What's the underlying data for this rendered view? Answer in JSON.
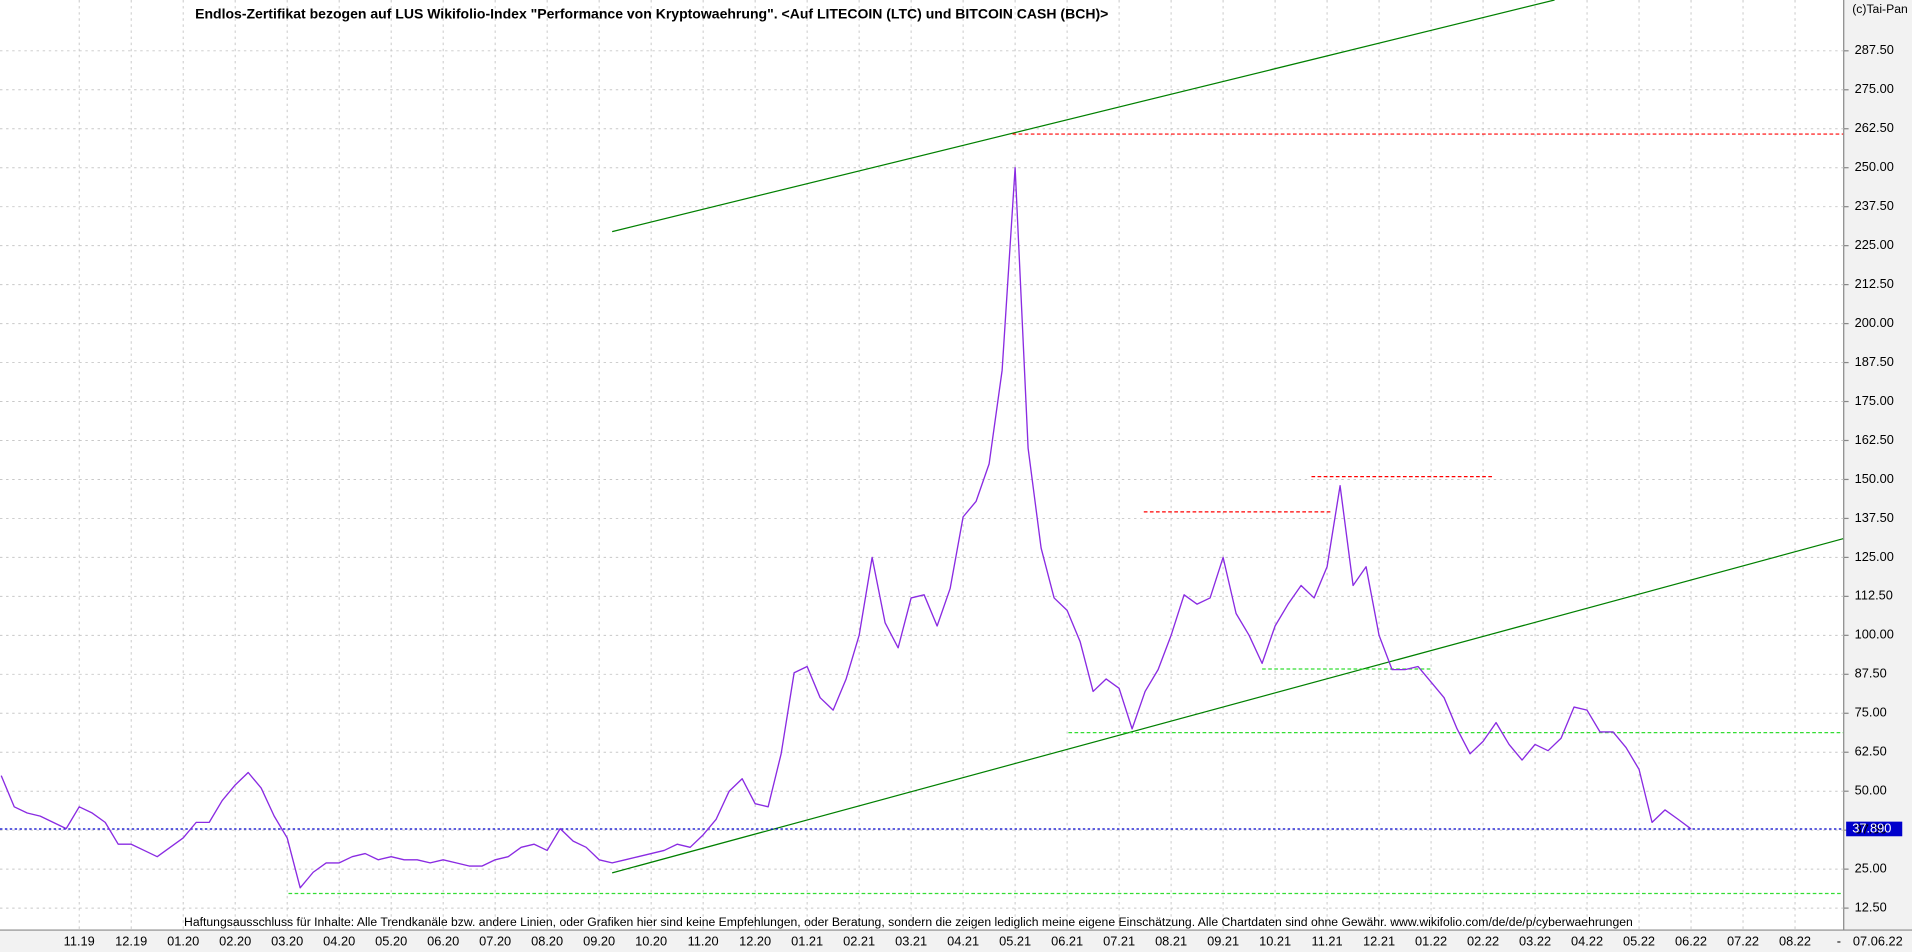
{
  "chart_data": {
    "type": "line",
    "title": "Endlos-Zertifikat bezogen auf LUS Wikifolio-Index \"Performance von Kryptowaehrung\". <Auf LITECOIN (LTC) und BITCOIN CASH (BCH)>",
    "copyright": "(c)Tai-Pan",
    "disclaimer": "Haftungsausschluss für Inhalte: Alle Trendkanäle bzw. andere Linien, oder Grafiken hier sind keine Empfehlungen, oder Beratung, sondern die zeigen lediglich meine eigene Einschätzung. Alle Chartdaten sind ohne Gewähr.  www.wikifolio.com/de/de/p/cyberwaehrungen",
    "date_separator": "-",
    "date": "07.06.22",
    "categories": [
      null,
      null,
      null,
      null,
      null,
      null,
      "11.19",
      null,
      null,
      null,
      "12.19",
      null,
      null,
      null,
      "01.20",
      null,
      null,
      null,
      "02.20",
      null,
      null,
      null,
      "03.20",
      null,
      null,
      null,
      "04.20",
      null,
      null,
      null,
      "05.20",
      null,
      null,
      null,
      "06.20",
      null,
      null,
      null,
      "07.20",
      null,
      null,
      null,
      "08.20",
      null,
      null,
      null,
      "09.20",
      null,
      null,
      null,
      "10.20",
      null,
      null,
      null,
      "11.20",
      null,
      null,
      null,
      "12.20",
      null,
      null,
      null,
      "01.21",
      null,
      null,
      null,
      "02.21",
      null,
      null,
      null,
      "03.21",
      null,
      null,
      null,
      "04.21",
      null,
      null,
      null,
      "05.21",
      null,
      null,
      null,
      "06.21",
      null,
      null,
      null,
      "07.21",
      null,
      null,
      null,
      "08.21",
      null,
      null,
      null,
      "09.21",
      null,
      null,
      null,
      "10.21",
      null,
      null,
      null,
      "11.21",
      null,
      null,
      null,
      "12.21",
      null,
      null,
      null,
      "01.22",
      null,
      null,
      null,
      "02.22",
      null,
      null,
      null,
      "03.22",
      null,
      null,
      null,
      "04.22",
      null,
      null,
      null,
      "05.22",
      null,
      null,
      null,
      "06.22",
      null,
      null,
      null,
      "07.22",
      null,
      null,
      null,
      "08.22",
      null,
      null,
      null
    ],
    "series": [
      {
        "color": "#8a2be2",
        "values": [
          55,
          45,
          43,
          42,
          40,
          38,
          45,
          43,
          40,
          33,
          33,
          31,
          29,
          32,
          35,
          40,
          40,
          47,
          52,
          56,
          51,
          42,
          35,
          19,
          24,
          27,
          27,
          29,
          30,
          28,
          29,
          28,
          28,
          27,
          28,
          27,
          26,
          26,
          28,
          29,
          32,
          33,
          31,
          38,
          34,
          32,
          28,
          27,
          28,
          29,
          30,
          31,
          33,
          32,
          36,
          41,
          50,
          54,
          46,
          45,
          62,
          88,
          90,
          80,
          76,
          86,
          100,
          125,
          104,
          96,
          112,
          113,
          103,
          115,
          138,
          143,
          155,
          185,
          250,
          160,
          128,
          112,
          108,
          98,
          82,
          86,
          83,
          70,
          82,
          89,
          100,
          113,
          110,
          112,
          125,
          107,
          100,
          91,
          103,
          110,
          116,
          112,
          122,
          148,
          116,
          122,
          100,
          89,
          89,
          90,
          85,
          80,
          70,
          62,
          66,
          72,
          65,
          60,
          65,
          63,
          67,
          77,
          76,
          69,
          69,
          64,
          57,
          40,
          44,
          41,
          37.89,
          null,
          null,
          null,
          null,
          null,
          null,
          null,
          null,
          null,
          null,
          null
        ]
      }
    ],
    "last_price": {
      "value": 37.89,
      "label": "37.890"
    },
    "last_price_color": "#0000cc",
    "lines": [
      {
        "color": "#008000",
        "dash": false,
        "start": [
          47,
          229.5
        ],
        "end": [
          119.5,
          303.8
        ]
      },
      {
        "color": "#008000",
        "dash": false,
        "start": [
          47,
          23.8
        ],
        "end": [
          141.7,
          131.0
        ]
      },
      {
        "color": "#ff0000",
        "dash": true,
        "start": [
          77.8,
          260.8
        ],
        "end": [
          141.7,
          260.8
        ]
      },
      {
        "color": "#ff0000",
        "dash": true,
        "start": [
          87.9,
          139.6
        ],
        "end": [
          102.3,
          139.6
        ]
      },
      {
        "color": "#ff0000",
        "dash": true,
        "start": [
          100.8,
          150.9
        ],
        "end": [
          114.8,
          150.9
        ]
      },
      {
        "color": "#33dd33",
        "dash": true,
        "start": [
          82.1,
          68.8
        ],
        "end": [
          141.7,
          68.8
        ]
      },
      {
        "color": "#33dd33",
        "dash": true,
        "start": [
          97,
          89.2
        ],
        "end": [
          110.1,
          89.2
        ]
      },
      {
        "color": "#33dd33",
        "dash": true,
        "start": [
          22.1,
          17.2
        ],
        "end": [
          141.7,
          17.2
        ]
      }
    ],
    "ylim": [
      5.46,
      303.8
    ],
    "yticks": [
      {
        "value": 12.5,
        "label": "12.50"
      },
      {
        "value": 25,
        "label": "25.00"
      },
      {
        "value": 37.5,
        "label": "37.50"
      },
      {
        "value": 50,
        "label": "50.00"
      },
      {
        "value": 62.5,
        "label": "62.50"
      },
      {
        "value": 75,
        "label": "75.00"
      },
      {
        "value": 87.5,
        "label": "87.50"
      },
      {
        "value": 100,
        "label": "100.00"
      },
      {
        "value": 112.5,
        "label": "112.50"
      },
      {
        "value": 125,
        "label": "125.00"
      },
      {
        "value": 137.5,
        "label": "137.50"
      },
      {
        "value": 150,
        "label": "150.00"
      },
      {
        "value": 162.5,
        "label": "162.50"
      },
      {
        "value": 175,
        "label": "175.00"
      },
      {
        "value": 187.5,
        "label": "187.50"
      },
      {
        "value": 200,
        "label": "200.00"
      },
      {
        "value": 212.5,
        "label": "212.50"
      },
      {
        "value": 225,
        "label": "225.00"
      },
      {
        "value": 237.5,
        "label": "237.50"
      },
      {
        "value": 250,
        "label": "250.00"
      },
      {
        "value": 262.5,
        "label": "262.50"
      },
      {
        "value": 275,
        "label": "275.00"
      },
      {
        "value": 287.5,
        "label": "287.50"
      }
    ],
    "grid": true
  }
}
